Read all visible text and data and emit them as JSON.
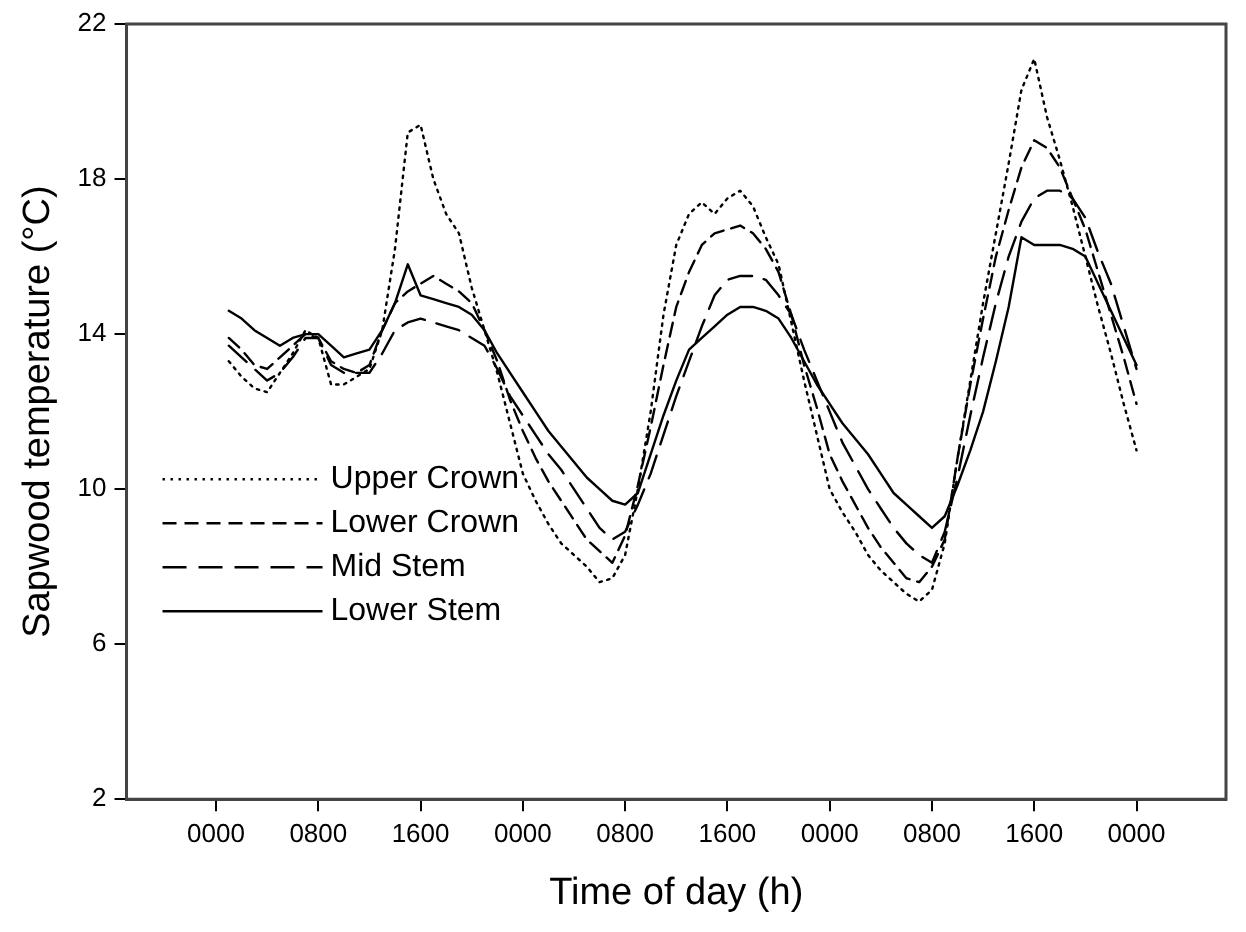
{
  "chart_data": {
    "type": "line",
    "xlabel": "Time of day (h)",
    "ylabel": "Sapwood temperature (°C)",
    "categories": [
      null,
      null,
      null,
      null,
      null,
      null,
      null,
      "0000",
      null,
      null,
      null,
      null,
      null,
      null,
      null,
      "0800",
      null,
      null,
      null,
      null,
      null,
      null,
      null,
      "1600",
      null,
      null,
      null,
      null,
      null,
      null,
      null,
      "0000",
      null,
      null,
      null,
      null,
      null,
      null,
      null,
      "0800",
      null,
      null,
      null,
      null,
      null,
      null,
      null,
      "1600",
      null,
      null,
      null,
      null,
      null,
      null,
      null,
      "0000",
      null,
      null,
      null,
      null,
      null,
      null,
      null,
      "0800",
      null,
      null,
      null,
      null,
      null,
      null,
      null,
      "1600",
      null,
      null,
      null,
      null,
      null,
      null,
      null,
      "0000",
      null,
      null,
      null,
      null,
      null,
      null,
      null
    ],
    "ylim": [
      2,
      22
    ],
    "yticks": [
      2,
      6,
      10,
      14,
      18,
      22
    ],
    "grid": false,
    "legend": "bottom left",
    "marker": "none",
    "series": [
      {
        "name": "Upper Crown",
        "color": "#000000",
        "line_style": "dotted",
        "values": [
          null,
          null,
          null,
          null,
          null,
          null,
          null,
          null,
          13.3,
          12.9,
          12.6,
          12.5,
          13.0,
          13.5,
          14.1,
          13.9,
          12.7,
          12.7,
          12.9,
          13.1,
          14.1,
          16.2,
          19.2,
          19.4,
          18.0,
          17.1,
          16.6,
          15.2,
          14.1,
          13.0,
          11.7,
          10.4,
          9.7,
          9.1,
          8.6,
          8.3,
          8.0,
          7.6,
          7.7,
          8.3,
          10.0,
          12.0,
          14.5,
          16.3,
          17.1,
          17.4,
          17.1,
          17.5,
          17.7,
          17.3,
          16.5,
          15.8,
          14.3,
          12.8,
          11.4,
          10.0,
          9.4,
          8.9,
          8.3,
          7.9,
          7.6,
          7.3,
          7.1,
          7.4,
          8.6,
          10.8,
          12.8,
          14.8,
          16.6,
          18.4,
          20.3,
          21.1,
          19.6,
          18.5,
          17.3,
          16.0,
          14.7,
          13.5,
          12.2,
          11.0,
          null,
          null,
          null,
          null,
          null,
          null,
          null
        ]
      },
      {
        "name": "Lower Crown",
        "color": "#000000",
        "line_style": "dashed",
        "values": [
          null,
          null,
          null,
          null,
          null,
          null,
          null,
          null,
          13.9,
          13.6,
          13.2,
          13.1,
          13.4,
          13.7,
          14.0,
          13.9,
          13.3,
          13.1,
          13.0,
          13.2,
          14.1,
          14.8,
          15.1,
          15.3,
          15.5,
          15.3,
          15.1,
          14.8,
          14.1,
          13.3,
          12.3,
          11.5,
          10.8,
          10.2,
          9.7,
          9.2,
          8.7,
          8.4,
          8.1,
          8.8,
          10.1,
          11.6,
          13.2,
          14.7,
          15.6,
          16.3,
          16.6,
          16.7,
          16.8,
          16.6,
          16.2,
          15.6,
          14.5,
          13.2,
          12.1,
          10.9,
          10.2,
          9.6,
          9.0,
          8.5,
          8.1,
          7.7,
          7.6,
          8.0,
          8.7,
          10.8,
          12.7,
          14.4,
          16.0,
          17.2,
          18.3,
          19.0,
          18.8,
          18.3,
          17.5,
          16.7,
          15.6,
          14.5,
          13.4,
          12.2,
          null,
          null,
          null,
          null,
          null,
          null,
          null
        ]
      },
      {
        "name": "Mid Stem",
        "color": "#000000",
        "line_style": "dashed",
        "values": [
          null,
          null,
          null,
          null,
          null,
          null,
          null,
          null,
          13.7,
          13.4,
          13.1,
          12.8,
          13.0,
          13.4,
          13.9,
          13.9,
          13.2,
          13.0,
          13.0,
          13.0,
          13.5,
          14.1,
          14.3,
          14.4,
          14.3,
          14.2,
          14.1,
          13.9,
          13.7,
          13.1,
          12.4,
          11.9,
          11.4,
          10.9,
          10.5,
          10.0,
          9.5,
          9.0,
          8.7,
          8.9,
          9.6,
          10.4,
          11.4,
          12.4,
          13.3,
          14.2,
          15.0,
          15.4,
          15.5,
          15.5,
          15.4,
          15.0,
          14.5,
          13.6,
          12.8,
          12.0,
          11.2,
          10.6,
          10.0,
          9.5,
          9.0,
          8.6,
          8.3,
          8.1,
          8.9,
          10.3,
          11.9,
          13.4,
          14.8,
          16.0,
          16.9,
          17.5,
          17.7,
          17.7,
          17.5,
          17.0,
          16.1,
          15.3,
          14.2,
          13.1,
          null,
          null,
          null,
          null,
          null,
          null,
          null
        ]
      },
      {
        "name": "Lower Stem",
        "color": "#000000",
        "line_style": "solid",
        "values": [
          null,
          null,
          null,
          null,
          null,
          null,
          null,
          null,
          14.6,
          14.4,
          14.1,
          13.9,
          13.7,
          13.9,
          14.0,
          14.0,
          13.7,
          13.4,
          13.5,
          13.6,
          14.1,
          14.8,
          15.8,
          15.0,
          14.9,
          14.8,
          14.7,
          14.5,
          14.1,
          13.5,
          13.0,
          12.5,
          12.0,
          11.5,
          11.1,
          10.7,
          10.3,
          10.0,
          9.7,
          9.6,
          9.9,
          10.9,
          11.9,
          12.8,
          13.6,
          13.9,
          14.2,
          14.5,
          14.7,
          14.7,
          14.6,
          14.4,
          13.9,
          13.3,
          12.7,
          12.2,
          11.7,
          11.3,
          10.9,
          10.4,
          9.9,
          9.6,
          9.3,
          9.0,
          9.3,
          10.1,
          11.0,
          12.0,
          13.3,
          14.7,
          16.5,
          16.3,
          16.3,
          16.3,
          16.2,
          16.0,
          15.3,
          14.6,
          13.9,
          13.2,
          null,
          null,
          null,
          null,
          null,
          null,
          null
        ]
      }
    ]
  }
}
